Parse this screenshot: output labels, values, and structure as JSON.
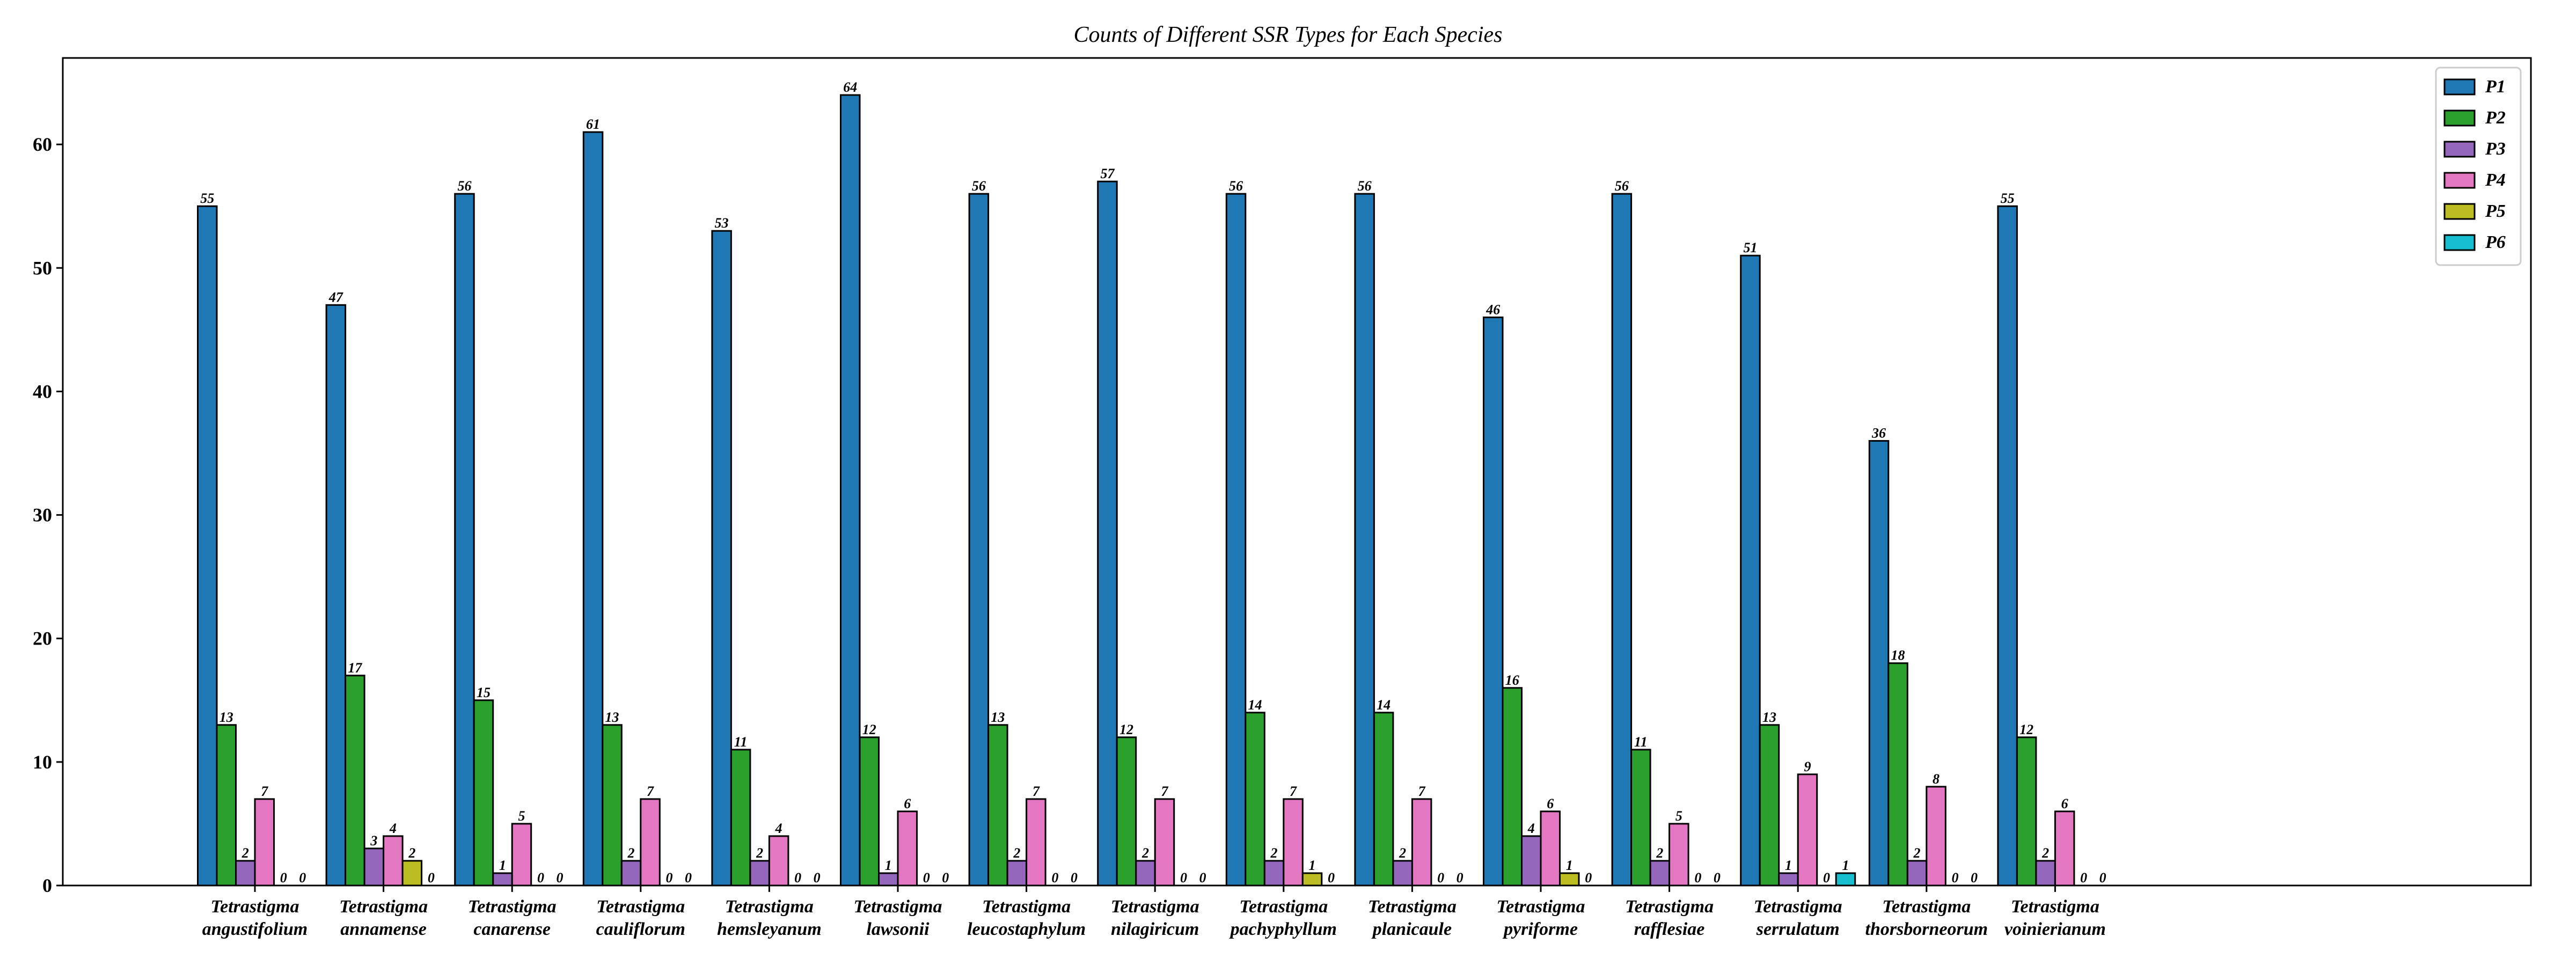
{
  "chart_data": {
    "type": "bar",
    "title": "Counts of Different SSR Types for Each Species",
    "xlabel": "",
    "ylabel": "",
    "ylim": [
      0,
      67
    ],
    "yticks": [
      "0",
      "10",
      "20",
      "30",
      "40",
      "50",
      "60"
    ],
    "grid": false,
    "legend_position": "top-right",
    "categories": [
      [
        "Tetrastigma",
        "angustifolium"
      ],
      [
        "Tetrastigma",
        "annamense"
      ],
      [
        "Tetrastigma",
        "canarense"
      ],
      [
        "Tetrastigma",
        "cauliflorum"
      ],
      [
        "Tetrastigma",
        "hemsleyanum"
      ],
      [
        "Tetrastigma",
        "lawsonii"
      ],
      [
        "Tetrastigma",
        "leucostaphylum"
      ],
      [
        "Tetrastigma",
        "nilagiricum"
      ],
      [
        "Tetrastigma",
        "pachyphyllum"
      ],
      [
        "Tetrastigma",
        "planicaule"
      ],
      [
        "Tetrastigma",
        "pyriforme"
      ],
      [
        "Tetrastigma",
        "rafflesiae"
      ],
      [
        "Tetrastigma",
        "serrulatum"
      ],
      [
        "Tetrastigma",
        "thorsborneorum"
      ],
      [
        "Tetrastigma",
        "voinierianum"
      ]
    ],
    "series": [
      {
        "name": "P1",
        "color": "#1f77b4",
        "values": [
          55,
          47,
          56,
          61,
          53,
          64,
          56,
          57,
          56,
          56,
          46,
          56,
          51,
          36,
          55
        ]
      },
      {
        "name": "P2",
        "color": "#2ca02c",
        "values": [
          13,
          17,
          15,
          13,
          11,
          12,
          13,
          12,
          14,
          14,
          16,
          11,
          13,
          18,
          12
        ]
      },
      {
        "name": "P3",
        "color": "#9467bd",
        "values": [
          2,
          3,
          1,
          2,
          2,
          1,
          2,
          2,
          2,
          2,
          4,
          2,
          1,
          2,
          2
        ]
      },
      {
        "name": "P4",
        "color": "#e377c2",
        "values": [
          7,
          4,
          5,
          7,
          4,
          6,
          7,
          7,
          7,
          7,
          6,
          5,
          9,
          8,
          6
        ]
      },
      {
        "name": "P5",
        "color": "#bcbd22",
        "values": [
          0,
          2,
          0,
          0,
          0,
          0,
          0,
          0,
          1,
          0,
          1,
          0,
          0,
          0,
          0
        ]
      },
      {
        "name": "P6",
        "color": "#17becf",
        "values": [
          0,
          0,
          0,
          0,
          0,
          0,
          0,
          0,
          0,
          0,
          0,
          0,
          1,
          0,
          0
        ]
      }
    ]
  }
}
